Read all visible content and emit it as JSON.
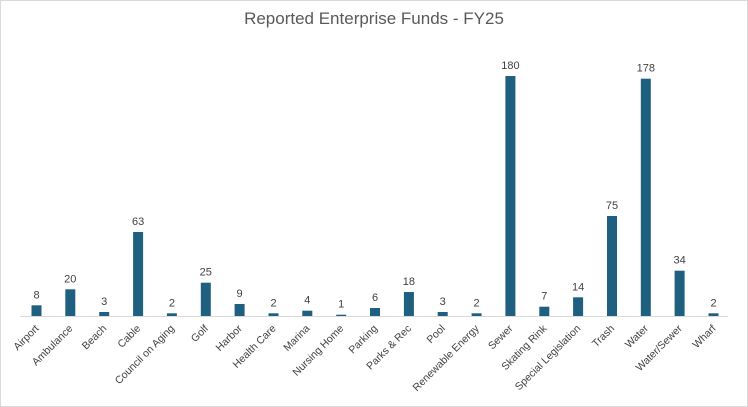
{
  "chart_data": {
    "type": "bar",
    "title": "Reported Enterprise Funds - FY25",
    "xlabel": "",
    "ylabel": "",
    "grid": false,
    "legend": "none",
    "ylim": [
      0,
      180
    ],
    "bar_color": "#1f5f7f",
    "categories": [
      "Airport",
      "Ambulance",
      "Beach",
      "Cable",
      "Council on Aging",
      "Golf",
      "Harbor",
      "Health Care",
      "Marina",
      "Nursing Home",
      "Parking",
      "Parks & Rec",
      "Pool",
      "Renewable Energy",
      "Sewer",
      "Skating Rink",
      "Special Legislation",
      "Trash",
      "Water",
      "Water/Sewer",
      "Wharf"
    ],
    "values": [
      8,
      20,
      3,
      63,
      2,
      25,
      9,
      2,
      4,
      1,
      6,
      18,
      3,
      2,
      180,
      7,
      14,
      75,
      178,
      34,
      2
    ]
  }
}
